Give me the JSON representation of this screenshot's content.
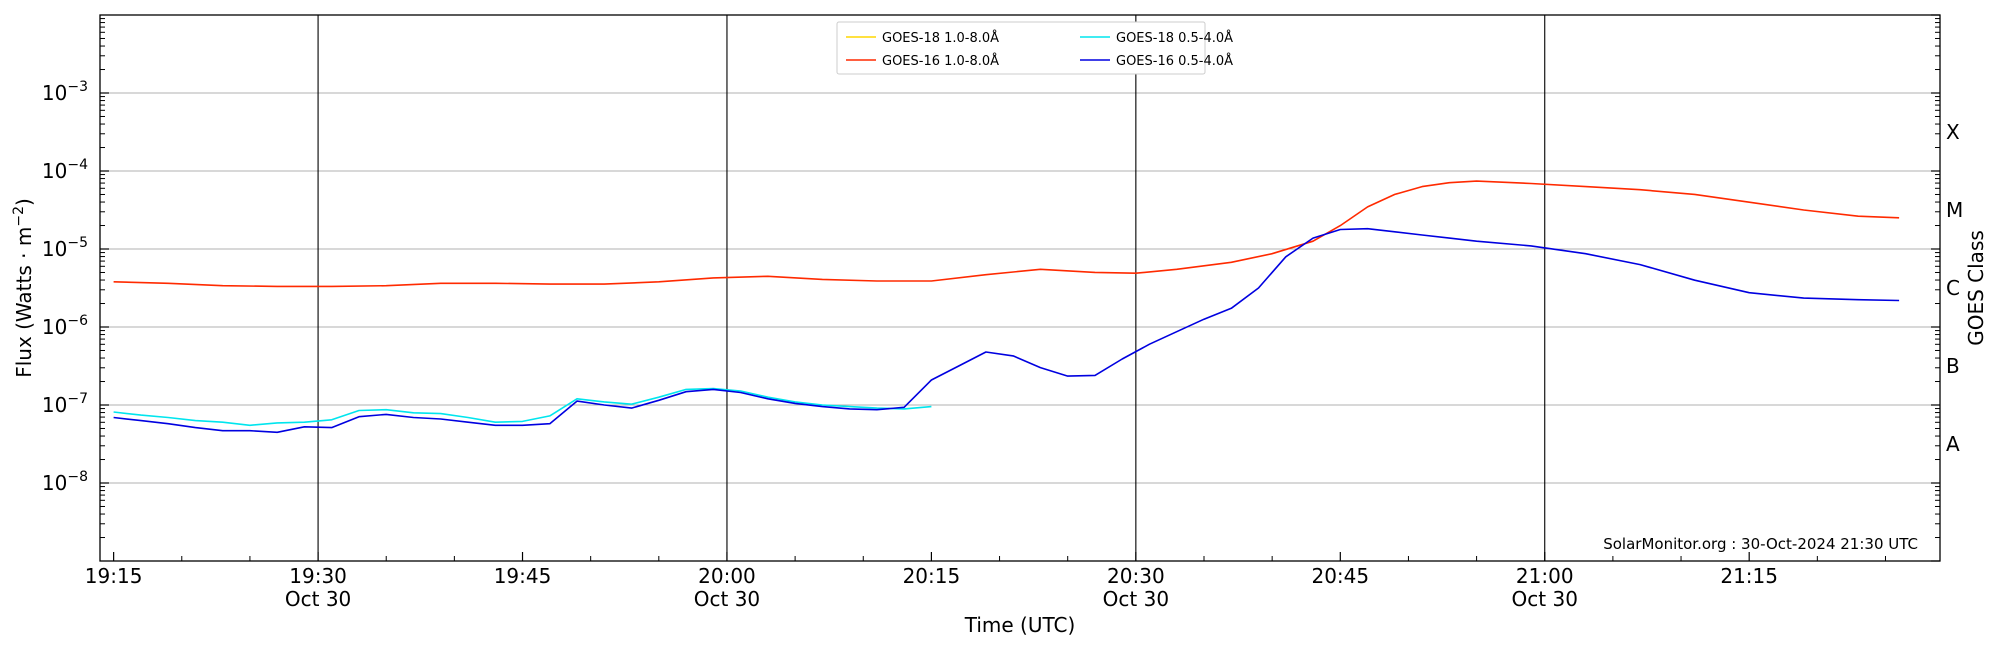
{
  "chart_data": {
    "type": "line",
    "xlabel": "Time (UTC)",
    "ylabel_main": "Flux (Watts · m",
    "ylabel_sup": "−2",
    "ylabel_close": ")",
    "right_label": "GOES Class",
    "credit": "SolarMonitor.org : 30-Oct-2024 21:30 UTC",
    "x_range_minutes": [
      -1,
      134
    ],
    "x_ticks": [
      {
        "minute": 0,
        "label": "19:15",
        "sub": ""
      },
      {
        "minute": 15,
        "label": "19:30",
        "sub": "Oct 30"
      },
      {
        "minute": 30,
        "label": "19:45",
        "sub": ""
      },
      {
        "minute": 45,
        "label": "20:00",
        "sub": "Oct 30"
      },
      {
        "minute": 60,
        "label": "20:15",
        "sub": ""
      },
      {
        "minute": 75,
        "label": "20:30",
        "sub": "Oct 30"
      },
      {
        "minute": 90,
        "label": "20:45",
        "sub": ""
      },
      {
        "minute": 105,
        "label": "21:00",
        "sub": "Oct 30"
      },
      {
        "minute": 120,
        "label": "21:15",
        "sub": ""
      }
    ],
    "vlines_minutes": [
      15,
      45,
      75,
      105
    ],
    "y_log_range": [
      -9,
      -2
    ],
    "y_ticks": [
      {
        "exp": -3,
        "base": "10",
        "sup": "−3"
      },
      {
        "exp": -4,
        "base": "10",
        "sup": "−4"
      },
      {
        "exp": -5,
        "base": "10",
        "sup": "−5"
      },
      {
        "exp": -6,
        "base": "10",
        "sup": "−6"
      },
      {
        "exp": -7,
        "base": "10",
        "sup": "−7"
      },
      {
        "exp": -8,
        "base": "10",
        "sup": "−8"
      }
    ],
    "goes_classes": [
      {
        "label": "X",
        "exp": -3.5
      },
      {
        "label": "M",
        "exp": -4.5
      },
      {
        "label": "C",
        "exp": -5.5
      },
      {
        "label": "B",
        "exp": -6.5
      },
      {
        "label": "A",
        "exp": -7.5
      }
    ],
    "grid": true,
    "legend_position": "top-center",
    "series": [
      {
        "name": "GOES-18 1.0-8.0Å",
        "color": "#ffd700",
        "x": [],
        "log_flux": []
      },
      {
        "name": "GOES-18 0.5-4.0Å",
        "color": "#00e5ee",
        "x": [
          0,
          2,
          4,
          6,
          8,
          10,
          12,
          14,
          16,
          18,
          20,
          22,
          24,
          26,
          28,
          30,
          32,
          34,
          36,
          38,
          40,
          42,
          44,
          46,
          48,
          50,
          52,
          54,
          56,
          58,
          60
        ],
        "log_flux": [
          -7.09,
          -7.13,
          -7.16,
          -7.2,
          -7.22,
          -7.26,
          -7.23,
          -7.22,
          -7.19,
          -7.07,
          -7.06,
          -7.1,
          -7.11,
          -7.16,
          -7.22,
          -7.21,
          -7.14,
          -6.92,
          -6.96,
          -6.99,
          -6.9,
          -6.8,
          -6.79,
          -6.82,
          -6.9,
          -6.96,
          -7.0,
          -7.02,
          -7.04,
          -7.05,
          -7.02
        ]
      },
      {
        "name": "GOES-16 1.0-8.0Å",
        "color": "#ff2a00",
        "x": [
          0,
          4,
          8,
          12,
          16,
          20,
          24,
          28,
          32,
          36,
          40,
          44,
          48,
          52,
          56,
          60,
          64,
          68,
          72,
          75,
          78,
          82,
          85,
          88,
          90,
          92,
          94,
          96,
          98,
          100,
          104,
          108,
          112,
          116,
          120,
          124,
          128,
          131
        ],
        "log_flux": [
          -5.42,
          -5.44,
          -5.47,
          -5.48,
          -5.48,
          -5.47,
          -5.44,
          -5.44,
          -5.45,
          -5.45,
          -5.42,
          -5.37,
          -5.35,
          -5.39,
          -5.41,
          -5.41,
          -5.33,
          -5.26,
          -5.3,
          -5.31,
          -5.26,
          -5.17,
          -5.06,
          -4.9,
          -4.7,
          -4.46,
          -4.3,
          -4.2,
          -4.15,
          -4.13,
          -4.16,
          -4.2,
          -4.24,
          -4.3,
          -4.4,
          -4.5,
          -4.58,
          -4.6
        ]
      },
      {
        "name": "GOES-16 0.5-4.0Å",
        "color": "#0000e0",
        "x": [
          0,
          2,
          4,
          6,
          8,
          10,
          12,
          14,
          16,
          18,
          20,
          22,
          24,
          26,
          28,
          30,
          32,
          34,
          36,
          38,
          40,
          42,
          44,
          46,
          48,
          50,
          52,
          54,
          56,
          58,
          60,
          62,
          64,
          66,
          68,
          70,
          72,
          74,
          76,
          78,
          80,
          82,
          84,
          86,
          88,
          90,
          92,
          94,
          96,
          98,
          100,
          104,
          108,
          112,
          116,
          120,
          124,
          128,
          131
        ],
        "log_flux": [
          -7.16,
          -7.2,
          -7.24,
          -7.29,
          -7.33,
          -7.33,
          -7.35,
          -7.28,
          -7.29,
          -7.15,
          -7.12,
          -7.16,
          -7.18,
          -7.22,
          -7.26,
          -7.26,
          -7.24,
          -6.95,
          -7.0,
          -7.04,
          -6.94,
          -6.83,
          -6.8,
          -6.84,
          -6.92,
          -6.98,
          -7.02,
          -7.05,
          -7.06,
          -7.03,
          -6.68,
          -6.5,
          -6.32,
          -6.37,
          -6.52,
          -6.63,
          -6.62,
          -6.41,
          -6.22,
          -6.06,
          -5.9,
          -5.76,
          -5.5,
          -5.1,
          -4.86,
          -4.75,
          -4.74,
          -4.78,
          -4.82,
          -4.86,
          -4.9,
          -4.96,
          -5.06,
          -5.2,
          -5.4,
          -5.56,
          -5.63,
          -5.65,
          -5.66
        ]
      }
    ]
  }
}
